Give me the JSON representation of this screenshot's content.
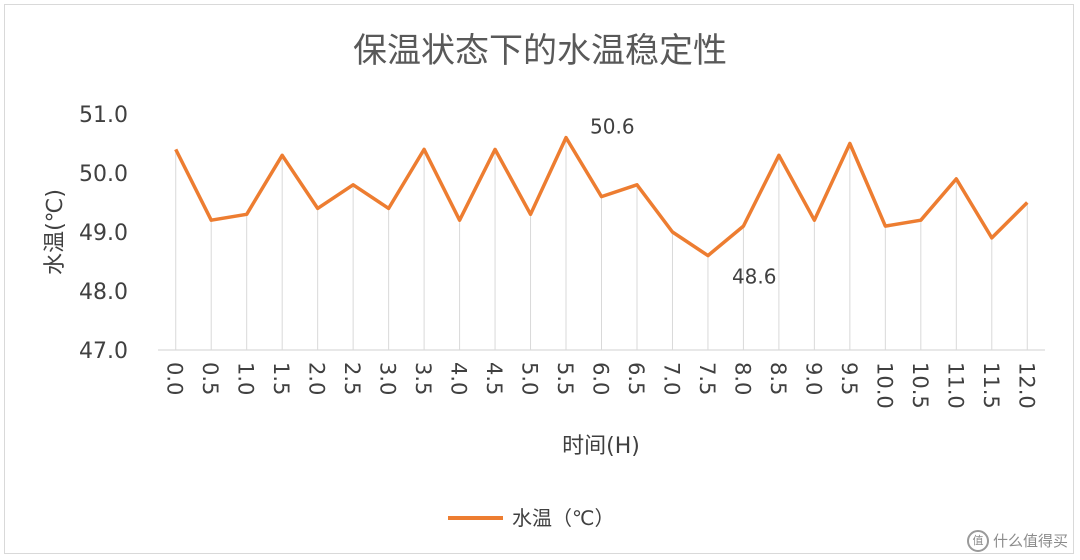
{
  "chart_data": {
    "type": "line",
    "title": "保温状态下的水温稳定性",
    "xlabel": "时间(H)",
    "ylabel": "水温(℃)",
    "ylim": [
      47.0,
      51.0
    ],
    "yticks": [
      "47.0",
      "48.0",
      "49.0",
      "50.0",
      "51.0"
    ],
    "categories": [
      "0.0",
      "0.5",
      "1.0",
      "1.5",
      "2.0",
      "2.5",
      "3.0",
      "3.5",
      "4.0",
      "4.5",
      "5.0",
      "5.5",
      "6.0",
      "6.5",
      "7.0",
      "7.5",
      "8.0",
      "8.5",
      "9.0",
      "9.5",
      "10.0",
      "10.5",
      "11.0",
      "11.5",
      "12.0"
    ],
    "series": [
      {
        "name": "水温（℃）",
        "color": "#ed7d31",
        "values": [
          50.4,
          49.2,
          49.3,
          50.3,
          49.4,
          49.8,
          49.4,
          50.4,
          49.2,
          50.4,
          49.3,
          50.6,
          49.6,
          49.8,
          49.0,
          48.6,
          49.1,
          50.3,
          49.2,
          50.5,
          49.1,
          49.2,
          49.9,
          48.9,
          49.5
        ]
      }
    ],
    "annotations": [
      {
        "text": "50.6",
        "index": 11
      },
      {
        "text": "48.6",
        "index": 15
      }
    ],
    "grid": "vertical drop lines",
    "legend": "bottom-center"
  },
  "watermark": "什么值得买"
}
